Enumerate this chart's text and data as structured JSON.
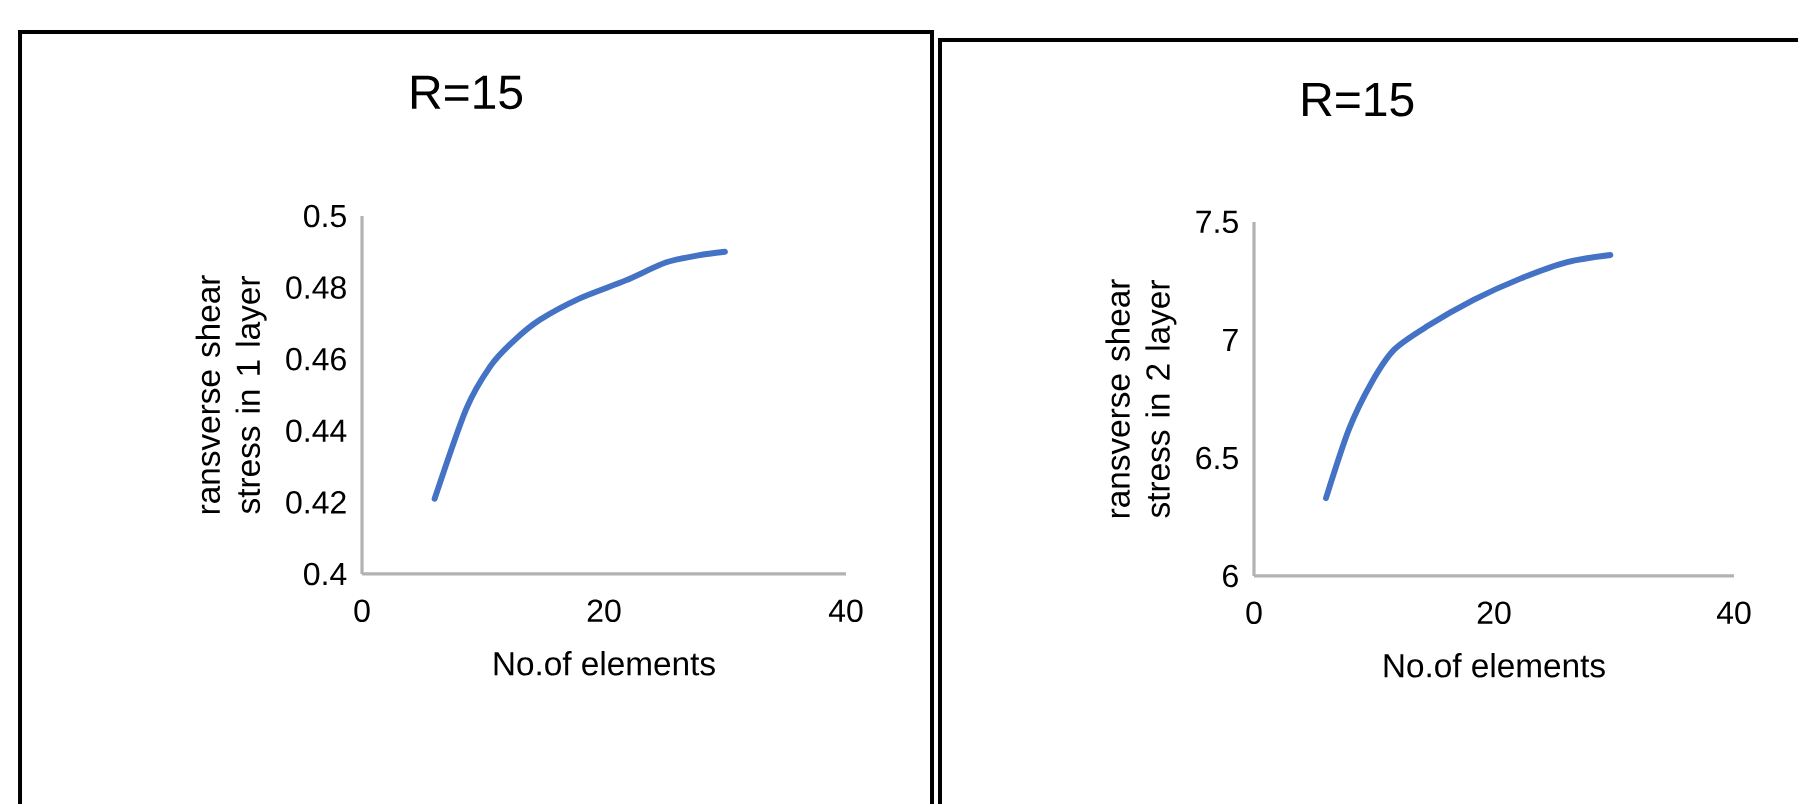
{
  "chart_data": [
    {
      "type": "line",
      "title": "R=15",
      "xlabel": "No.of elements",
      "ylabel": "ransverse shear stress in 1 layer",
      "color": "#4472c4",
      "line_style": "solid",
      "x": [
        6,
        8.6,
        10.6,
        12.5,
        14.7,
        18,
        21.8,
        25.1,
        27.8,
        30
      ],
      "values": [
        0.421,
        0.446,
        0.458,
        0.465,
        0.471,
        0.477,
        0.482,
        0.487,
        0.489,
        0.49
      ],
      "xlim": [
        0,
        40
      ],
      "xticks": [
        0,
        20,
        40
      ],
      "ylim": [
        0.4,
        0.5
      ],
      "yticks": [
        0.4,
        0.42,
        0.44,
        0.46,
        0.48,
        0.5
      ]
    },
    {
      "type": "line",
      "title": "R=15",
      "xlabel": "No.of elements",
      "ylabel": "ransverse shear stress in 2 layer",
      "color": "#4472c4",
      "line_style": "solid",
      "x": [
        6,
        7.9,
        9.8,
        11.7,
        14.5,
        18.3,
        22.2,
        26.1,
        29.7
      ],
      "values": [
        6.33,
        6.62,
        6.82,
        6.96,
        7.06,
        7.17,
        7.26,
        7.33,
        7.36
      ],
      "xlim": [
        0,
        40
      ],
      "xticks": [
        0,
        20,
        40
      ],
      "ylim": [
        6,
        7.5
      ],
      "yticks": [
        6,
        6.5,
        7,
        7.5
      ]
    }
  ]
}
